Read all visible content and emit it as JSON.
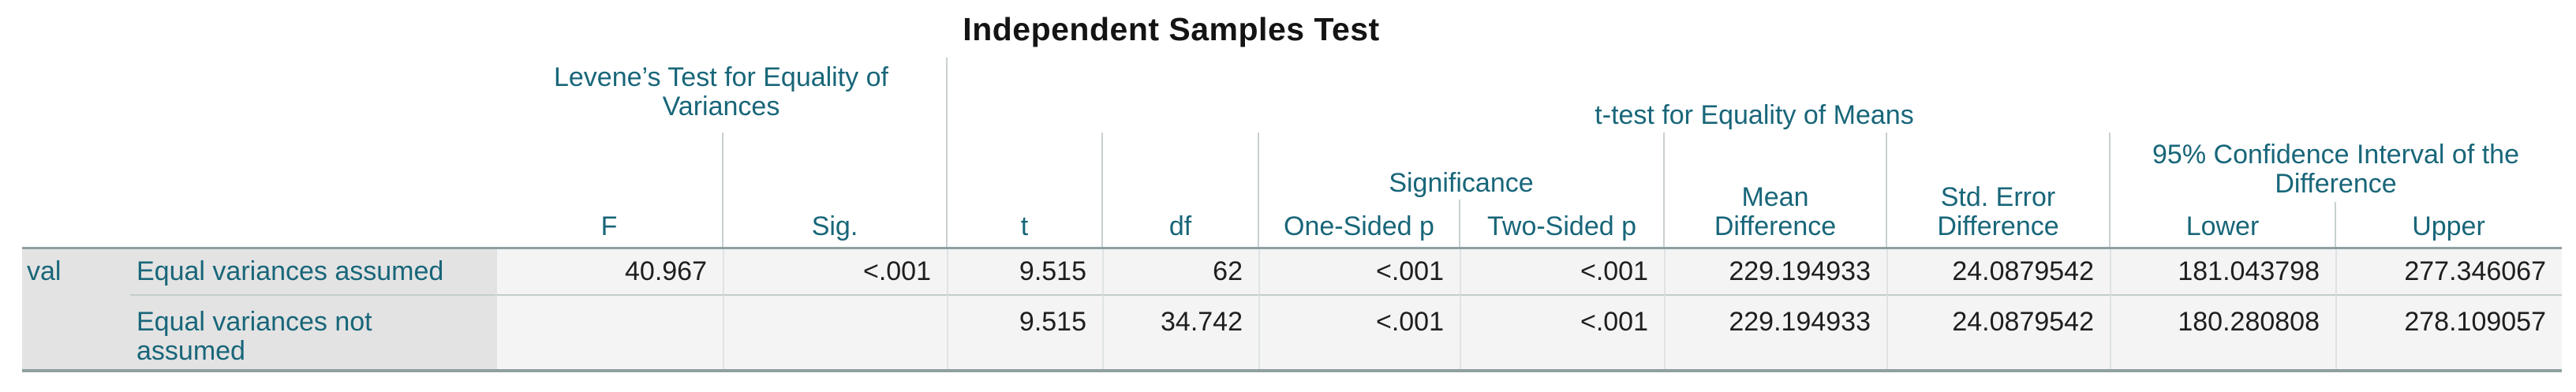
{
  "title": "Independent Samples Test",
  "table": {
    "row_variable": "val",
    "groups": {
      "levene": "Levene’s Test for Equality of\nVariances",
      "ttest": "t-test for Equality of Means",
      "significance": "Significance",
      "confidence_interval": "95% Confidence Interval of the\nDifference"
    },
    "columns": {
      "f": "F",
      "sig": "Sig.",
      "t": "t",
      "df": "df",
      "one_sided_p": "One-Sided p",
      "two_sided_p": "Two-Sided p",
      "mean_difference": "Mean\nDifference",
      "std_error_difference": "Std. Error\nDifference",
      "lower": "Lower",
      "upper": "Upper"
    },
    "rows": [
      {
        "label": "Equal variances assumed",
        "f": "40.967",
        "sig": "<.001",
        "t": "9.515",
        "df": "62",
        "one_sided_p": "<.001",
        "two_sided_p": "<.001",
        "mean_difference": "229.194933",
        "std_error_difference": "24.0879542",
        "lower": "181.043798",
        "upper": "277.346067"
      },
      {
        "label": "Equal variances not\nassumed",
        "f": "",
        "sig": "",
        "t": "9.515",
        "df": "34.742",
        "one_sided_p": "<.001",
        "two_sided_p": "<.001",
        "mean_difference": "229.194933",
        "std_error_difference": "24.0879542",
        "lower": "180.280808",
        "upper": "278.109057"
      }
    ]
  },
  "colors": {
    "header_text": "#186679",
    "data_text": "#1e1e1e",
    "stub_background": "#e3e3e3",
    "cell_background": "#f4f4f4",
    "frame_border": "#8ea0a0",
    "row_separator": "#c3cccc"
  }
}
